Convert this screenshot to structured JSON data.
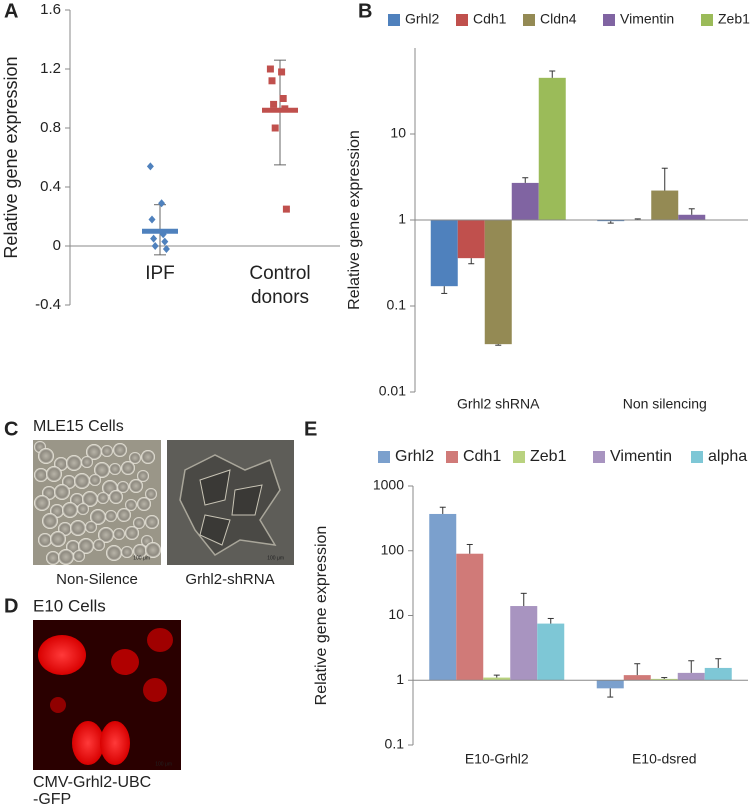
{
  "panels": {
    "a": "A",
    "b": "B",
    "c": "C",
    "d": "D",
    "e": "E"
  },
  "chart_data": [
    {
      "type": "dot",
      "y_label": "Relative gene expression",
      "ylim": [
        -0.4,
        1.6
      ],
      "yticks": [
        -0.4,
        0,
        0.4,
        0.8,
        1.2,
        1.6
      ],
      "groups": [
        {
          "category": "IPF",
          "color": "#4f81bd",
          "marker": "diamond",
          "points": [
            0.54,
            0.29,
            0.18,
            0.08,
            0.05,
            0.03,
            0.0,
            -0.02
          ],
          "mean": 0.1,
          "error_low": -0.06,
          "error_high": 0.28
        },
        {
          "category": "Control donors",
          "color": "#c0504d",
          "marker": "square",
          "points": [
            1.2,
            1.18,
            1.12,
            1.0,
            0.96,
            0.93,
            0.8,
            0.25
          ],
          "mean": 0.92,
          "error_low": 0.55,
          "error_high": 1.26
        }
      ]
    },
    {
      "type": "bar",
      "log_scale": true,
      "y_label": "Relative gene expression",
      "ylim": [
        0.01,
        100
      ],
      "yticks": [
        0.01,
        0.1,
        1,
        10
      ],
      "baseline": 1,
      "categories": [
        "Grhl2 shRNA",
        "Non silencing"
      ],
      "series": [
        {
          "name": "Grhl2",
          "color": "#4f81bd",
          "values": [
            0.17,
            0.97
          ],
          "errors": [
            0.03,
            0.05
          ]
        },
        {
          "name": "Cdh1",
          "color": "#c0504d",
          "values": [
            0.36,
            1.0
          ],
          "errors": [
            0.05,
            0.03
          ]
        },
        {
          "name": "Cldn4",
          "color": "#948a54",
          "values": [
            0.036,
            2.2
          ],
          "errors": [
            0.001,
            1.8
          ]
        },
        {
          "name": "Vimentin",
          "color": "#8064a2",
          "values": [
            2.7,
            1.15
          ],
          "errors": [
            0.4,
            0.2
          ]
        },
        {
          "name": "Zeb1",
          "color": "#9bbb59",
          "values": [
            45,
            1.0
          ],
          "errors": [
            9,
            0
          ]
        }
      ]
    },
    {
      "type": "bar",
      "log_scale": true,
      "y_label": "Relative gene expression",
      "ylim": [
        0.1,
        1000
      ],
      "yticks": [
        0.1,
        1,
        10,
        100,
        1000
      ],
      "baseline": 1,
      "categories": [
        "E10-Grhl2",
        "E10-dsred"
      ],
      "series": [
        {
          "name": "Grhl2",
          "color": "#7ba0cd",
          "values": [
            370,
            0.75
          ],
          "errors": [
            100,
            0.2
          ]
        },
        {
          "name": "Cdh1",
          "color": "#d07a78",
          "values": [
            90,
            1.2
          ],
          "errors": [
            35,
            0.6
          ]
        },
        {
          "name": "Zeb1",
          "color": "#b9d27f",
          "values": [
            1.1,
            1.05
          ],
          "errors": [
            0.1,
            0.05
          ]
        },
        {
          "name": "Vimentin",
          "color": "#a894c0",
          "values": [
            14,
            1.3
          ],
          "errors": [
            8,
            0.7
          ]
        },
        {
          "name": "alpha SMA",
          "color": "#7ec7d6",
          "values": [
            7.5,
            1.55
          ],
          "errors": [
            1.5,
            0.6
          ]
        }
      ]
    }
  ],
  "images": {
    "mle15_title": "MLE15 Cells",
    "mle15_left": "Non-Silence",
    "mle15_right": "Grhl2-shRNA",
    "scale_bar": "100 μm",
    "e10_title": "E10 Cells",
    "e10_caption": [
      "CMV-Grhl2-UBC",
      "-GFP"
    ]
  }
}
